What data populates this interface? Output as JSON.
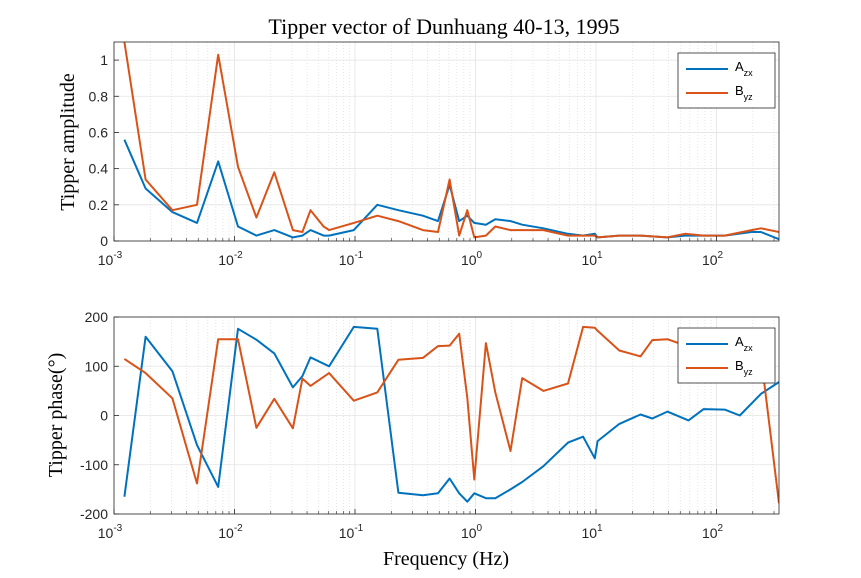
{
  "chart_data": [
    {
      "type": "line",
      "title": "Tipper vector of Dunhuang 40-13, 1995",
      "xlabel": "",
      "ylabel": "Tipper amplitude",
      "xscale": "log",
      "xlim": [
        0.001,
        330
      ],
      "ylim": [
        0,
        1.1
      ],
      "yticks": [
        0,
        0.2,
        0.4,
        0.6,
        0.8,
        1
      ],
      "ytick_labels": [
        "0",
        "0.2",
        "0.4",
        "0.6",
        "0.8",
        "1"
      ],
      "xtick_labels": [
        {
          "base": "10",
          "exp": "-3"
        },
        {
          "base": "10",
          "exp": "-2"
        },
        {
          "base": "10",
          "exp": "-1"
        },
        {
          "base": "10",
          "exp": "0"
        },
        {
          "base": "10",
          "exp": "1"
        },
        {
          "base": "10",
          "exp": "2"
        }
      ],
      "grid": true,
      "legend": "top-right",
      "series": [
        {
          "name": "A",
          "sub": "zx",
          "color": "#0072BD",
          "x": [
            0.00122,
            0.00183,
            0.00305,
            0.00488,
            0.00732,
            0.0107,
            0.0152,
            0.0214,
            0.0305,
            0.0366,
            0.0427,
            0.0549,
            0.061,
            0.0977,
            0.153,
            0.229,
            0.366,
            0.488,
            0.61,
            0.732,
            0.854,
            0.977,
            1.22,
            1.46,
            1.95,
            2.44,
            3.66,
            5.86,
            7.81,
            9.77,
            10.3,
            15.6,
            23.4,
            39.1,
            54.7,
            78.1,
            117,
            195,
            234,
            330
          ],
          "y": [
            0.56,
            0.29,
            0.16,
            0.1,
            0.44,
            0.08,
            0.03,
            0.06,
            0.02,
            0.03,
            0.06,
            0.03,
            0.03,
            0.06,
            0.2,
            0.17,
            0.14,
            0.11,
            0.31,
            0.11,
            0.14,
            0.1,
            0.09,
            0.12,
            0.11,
            0.09,
            0.07,
            0.04,
            0.03,
            0.04,
            0.02,
            0.03,
            0.03,
            0.02,
            0.03,
            0.03,
            0.03,
            0.05,
            0.05,
            0.01
          ]
        },
        {
          "name": "B",
          "sub": "yz",
          "color": "#D95319",
          "x": [
            0.00122,
            0.00183,
            0.00305,
            0.00488,
            0.00732,
            0.0107,
            0.0152,
            0.0214,
            0.0305,
            0.0366,
            0.0427,
            0.0549,
            0.061,
            0.0977,
            0.153,
            0.229,
            0.366,
            0.488,
            0.61,
            0.732,
            0.854,
            0.977,
            1.22,
            1.46,
            1.95,
            2.44,
            3.66,
            5.86,
            7.81,
            9.77,
            10.3,
            15.6,
            23.4,
            39.1,
            54.7,
            78.1,
            117,
            195,
            234,
            330
          ],
          "y": [
            1.1,
            0.34,
            0.17,
            0.2,
            1.03,
            0.41,
            0.13,
            0.38,
            0.06,
            0.05,
            0.17,
            0.08,
            0.06,
            0.1,
            0.14,
            0.11,
            0.06,
            0.05,
            0.34,
            0.03,
            0.17,
            0.02,
            0.03,
            0.08,
            0.06,
            0.06,
            0.06,
            0.03,
            0.03,
            0.03,
            0.02,
            0.03,
            0.03,
            0.02,
            0.04,
            0.03,
            0.03,
            0.06,
            0.07,
            0.05
          ]
        }
      ]
    },
    {
      "type": "line",
      "title": "",
      "xlabel": "Frequency (Hz)",
      "ylabel": "Tipper phase(°)",
      "xscale": "log",
      "xlim": [
        0.001,
        330
      ],
      "ylim": [
        -200,
        200
      ],
      "yticks": [
        -200,
        -100,
        0,
        100,
        200
      ],
      "ytick_labels": [
        "-200",
        "-100",
        "0",
        "100",
        "200"
      ],
      "xtick_labels": [
        {
          "base": "10",
          "exp": "-3"
        },
        {
          "base": "10",
          "exp": "-2"
        },
        {
          "base": "10",
          "exp": "-1"
        },
        {
          "base": "10",
          "exp": "0"
        },
        {
          "base": "10",
          "exp": "1"
        },
        {
          "base": "10",
          "exp": "2"
        }
      ],
      "grid": true,
      "legend": "top-right",
      "series": [
        {
          "name": "A",
          "sub": "zx",
          "color": "#0072BD",
          "x": [
            0.00122,
            0.00183,
            0.00305,
            0.00488,
            0.00732,
            0.0107,
            0.0152,
            0.0214,
            0.0305,
            0.0366,
            0.0427,
            0.061,
            0.0977,
            0.153,
            0.229,
            0.366,
            0.488,
            0.61,
            0.732,
            0.854,
            0.977,
            1.22,
            1.46,
            1.95,
            2.44,
            3.66,
            5.86,
            7.81,
            9.77,
            10.3,
            15.6,
            23.4,
            29.3,
            39.1,
            58.6,
            78.1,
            117,
            156,
            234,
            330
          ],
          "y": [
            -165,
            160,
            90,
            -60,
            -145,
            176,
            154,
            126,
            57,
            80,
            118,
            100,
            180,
            176,
            -157,
            -162,
            -158,
            -128,
            -158,
            -175,
            -158,
            -168,
            -168,
            -150,
            -135,
            -103,
            -55,
            -43,
            -87,
            -52,
            -17,
            2,
            -6,
            8,
            -10,
            13,
            12,
            0,
            44,
            68
          ]
        },
        {
          "name": "B",
          "sub": "yz",
          "color": "#D95319",
          "x": [
            0.00122,
            0.00183,
            0.00305,
            0.00488,
            0.00732,
            0.0107,
            0.0152,
            0.0214,
            0.0305,
            0.0366,
            0.0427,
            0.061,
            0.0977,
            0.153,
            0.229,
            0.366,
            0.488,
            0.61,
            0.732,
            0.854,
            0.977,
            1.22,
            1.46,
            1.95,
            2.44,
            3.66,
            5.86,
            7.81,
            9.77,
            10.3,
            15.6,
            23.4,
            29.3,
            39.1,
            58.6,
            78.1,
            117,
            156,
            234,
            330
          ],
          "y": [
            115,
            86,
            35,
            -138,
            155,
            155,
            -25,
            34,
            -26,
            75,
            60,
            86,
            30,
            47,
            113,
            117,
            141,
            142,
            166,
            36,
            -130,
            147,
            47,
            -72,
            76,
            50,
            65,
            180,
            178,
            172,
            132,
            120,
            153,
            155,
            140,
            125,
            125,
            120,
            120,
            -178
          ]
        }
      ]
    }
  ]
}
